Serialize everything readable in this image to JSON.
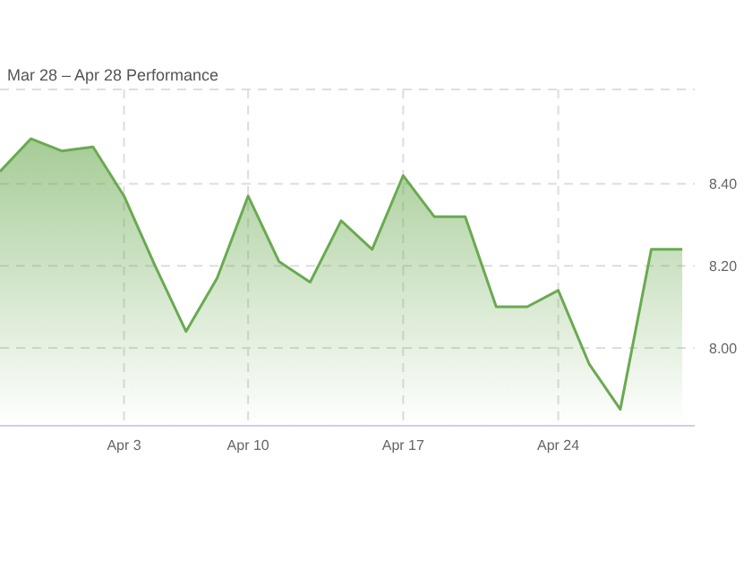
{
  "chart_data": {
    "type": "area",
    "title": "Mar 28 – Apr 28 Performance",
    "categories": [
      null,
      null,
      null,
      null,
      "Apr 3",
      null,
      null,
      null,
      "Apr 10",
      null,
      null,
      null,
      null,
      "Apr 17",
      null,
      null,
      null,
      null,
      "Apr 24",
      null,
      null,
      null,
      null
    ],
    "series": [
      {
        "color": "#6aaa50",
        "values": [
          8.43,
          8.51,
          8.48,
          8.49,
          8.37,
          8.2,
          8.04,
          8.17,
          8.37,
          8.21,
          8.16,
          8.31,
          8.24,
          8.42,
          8.32,
          8.32,
          8.1,
          8.1,
          8.14,
          7.96,
          7.85,
          8.24,
          8.24
        ]
      }
    ],
    "ylim": [
      7.81,
      8.63
    ],
    "yticks": [
      {
        "value": 8.0,
        "label": "8.00"
      },
      {
        "value": 8.2,
        "label": "8.20"
      },
      {
        "value": 8.4,
        "label": "8.40"
      }
    ],
    "grid": true
  }
}
